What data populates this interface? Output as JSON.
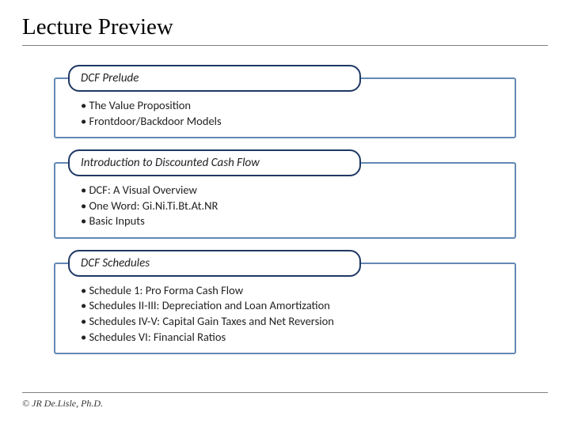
{
  "title": "Lecture Preview",
  "sections": [
    {
      "header": "DCF Prelude",
      "bullets": [
        "The Value Proposition",
        "Frontdoor/Backdoor Models"
      ]
    },
    {
      "header": "Introduction to Discounted Cash Flow",
      "bullets": [
        "DCF: A Visual Overview",
        "One Word: Gi.Ni.Ti.Bt.At.NR",
        "Basic Inputs"
      ]
    },
    {
      "header": "DCF Schedules",
      "bullets": [
        "Schedule 1: Pro Forma Cash Flow",
        "Schedules II-III: Depreciation and Loan Amortization",
        "Schedules IV-V: Capital Gain Taxes and Net Reversion",
        "Schedules VI: Financial Ratios"
      ]
    }
  ],
  "footer": "© JR De.Lisle, Ph.D.",
  "colors": {
    "frame_border": "#6388b4",
    "header_border": "#1f3864",
    "divider": "#7f7f7f",
    "background": "#ffffff"
  }
}
